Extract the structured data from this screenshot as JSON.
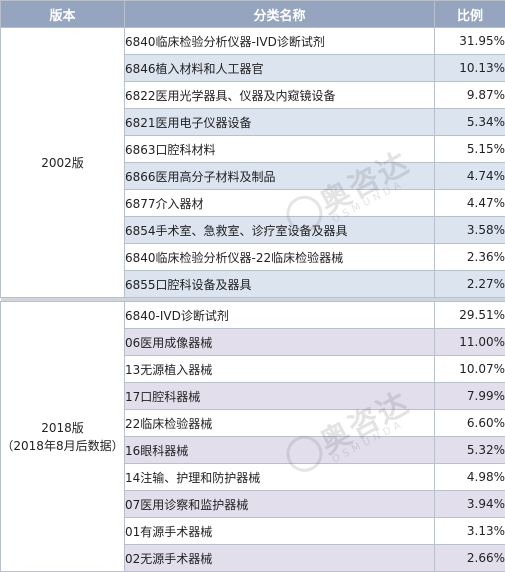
{
  "header": {
    "version": "版本",
    "category": "分类名称",
    "ratio": "比例"
  },
  "groups": [
    {
      "version": "2002版",
      "version_note": "",
      "rows": [
        {
          "category": "6840临床检验分析仪器-IVD诊断试剂",
          "ratio": "31.95%"
        },
        {
          "category": "6846植入材料和人工器官",
          "ratio": "10.13%"
        },
        {
          "category": "6822医用光学器具、仪器及内窥镜设备",
          "ratio": "9.87%"
        },
        {
          "category": "6821医用电子仪器设备",
          "ratio": "5.34%"
        },
        {
          "category": "6863口腔科材料",
          "ratio": "5.15%"
        },
        {
          "category": "6866医用高分子材料及制品",
          "ratio": "4.74%"
        },
        {
          "category": "6877介入器材",
          "ratio": "4.47%"
        },
        {
          "category": "6854手术室、急救室、诊疗室设备及器具",
          "ratio": "3.58%"
        },
        {
          "category": "6840临床检验分析仪器-22临床检验器械",
          "ratio": "2.36%"
        },
        {
          "category": "6855口腔科设备及器具",
          "ratio": "2.27%"
        }
      ]
    },
    {
      "version": "2018版",
      "version_note": "（2018年8月后数据）",
      "rows": [
        {
          "category": "6840-IVD诊断试剂",
          "ratio": "29.51%"
        },
        {
          "category": "06医用成像器械",
          "ratio": "11.00%"
        },
        {
          "category": "13无源植入器械",
          "ratio": "10.07%"
        },
        {
          "category": "17口腔科器械",
          "ratio": "7.99%"
        },
        {
          "category": "22临床检验器械",
          "ratio": "6.60%"
        },
        {
          "category": "16眼科器械",
          "ratio": "5.32%"
        },
        {
          "category": "14注输、护理和防护器械",
          "ratio": "4.98%"
        },
        {
          "category": "07医用诊察和监护器械",
          "ratio": "3.94%"
        },
        {
          "category": "01有源手术器械",
          "ratio": "3.13%"
        },
        {
          "category": "02无源手术器械",
          "ratio": "2.66%"
        }
      ]
    }
  ],
  "watermark": {
    "brand": "奥咨达",
    "latin": "OSMUNDA",
    "icon": "leaf-logo-icon"
  }
}
